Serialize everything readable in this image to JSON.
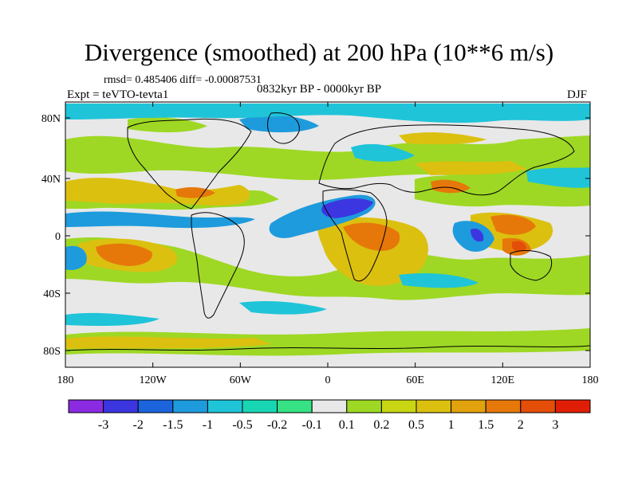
{
  "title": "Divergence (smoothed) at 200 hPa (10**6 m/s)",
  "stats": "rmsd= 0.485406 diff= -0.00087531",
  "experiment": "Expt = teVTO-tevta1",
  "period": "0832kyr BP - 0000kyr BP",
  "season": "DJF",
  "map": {
    "lat_ticks": [
      "80N",
      "40N",
      "0",
      "40S",
      "80S"
    ],
    "lon_ticks": [
      "180",
      "120W",
      "60W",
      "0",
      "60E",
      "120E",
      "180"
    ]
  },
  "colorbar": {
    "colors": [
      "#8a2be2",
      "#3c36e0",
      "#1c64dc",
      "#1e9bdc",
      "#1fc4d8",
      "#18d6b4",
      "#36e283",
      "#e8e8e8",
      "#9ed824",
      "#c8d614",
      "#dcc010",
      "#e2a20e",
      "#e6780a",
      "#e44e08",
      "#e01e06"
    ],
    "labels": [
      "-3",
      "-2",
      "-1.5",
      "-1",
      "-0.5",
      "-0.2",
      "-0.1",
      "0.1",
      "0.2",
      "0.5",
      "1",
      "1.5",
      "2",
      "3"
    ]
  },
  "colors": {
    "background": "#e8e8e8",
    "strong_neg": "#3c36e0",
    "mod_neg": "#1e9bdc",
    "weak_neg": "#1fc4d8",
    "weak_pos": "#9ed824",
    "mod_pos": "#dcc010",
    "strong_pos": "#e6780a",
    "max_pos": "#e44e08"
  }
}
